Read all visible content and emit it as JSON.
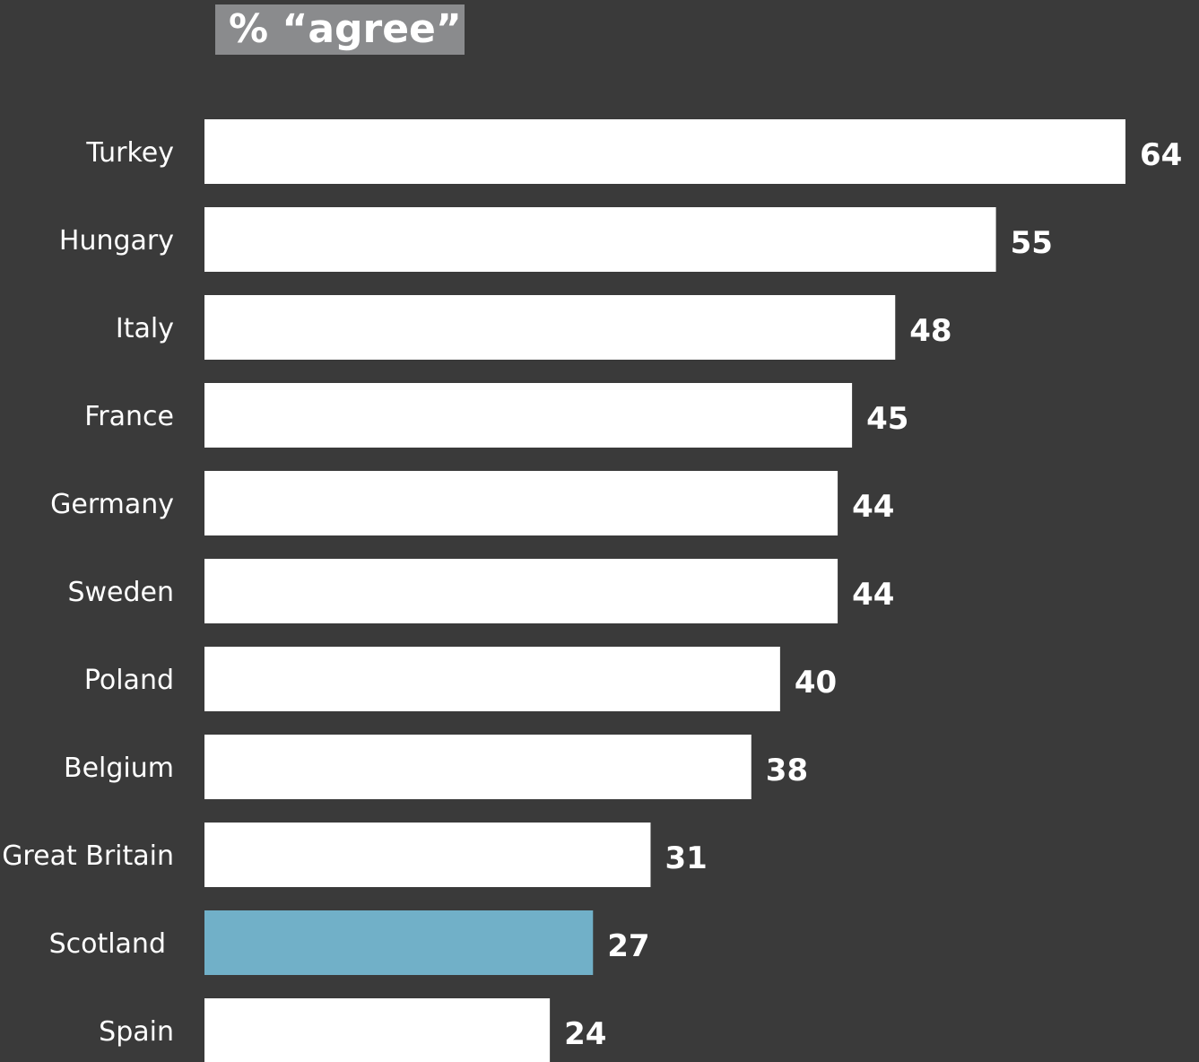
{
  "chart_data": {
    "type": "bar",
    "orientation": "horizontal",
    "title": "% “agree”",
    "categories": [
      "Turkey",
      "Hungary",
      "Italy",
      "France",
      "Germany",
      "Sweden",
      "Poland",
      "Belgium",
      "Great Britain",
      "Scotland",
      "Spain"
    ],
    "values": [
      64,
      55,
      48,
      45,
      44,
      44,
      40,
      38,
      31,
      27,
      24
    ],
    "highlight": "Scotland",
    "xlim": [
      0,
      64
    ],
    "grid": false,
    "legend": "none",
    "colors": {
      "background": "#3a3a3a",
      "bar": "#ffffff",
      "highlight_bar": "#71b0c8",
      "title_box": "#8a8b8d",
      "text": "#ffffff"
    }
  }
}
